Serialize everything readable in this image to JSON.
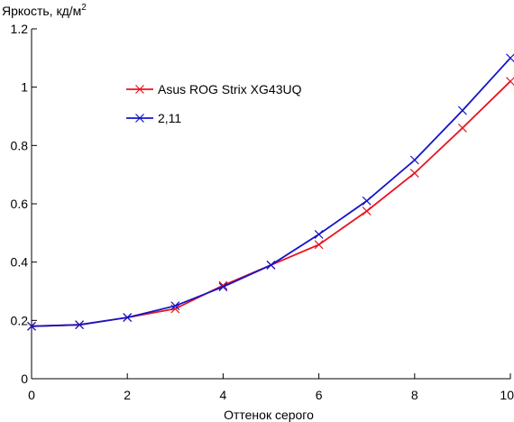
{
  "chart_data": {
    "type": "line",
    "title": "",
    "ylabel": "Яркость, кд/м",
    "ylabel_sup": "2",
    "xlabel": "Оттенок серого",
    "xlim": [
      0,
      10
    ],
    "ylim": [
      0,
      1.2
    ],
    "x_ticks": [
      "0",
      "2",
      "4",
      "6",
      "8",
      "10"
    ],
    "y_ticks": [
      "0",
      "0.2",
      "0.4",
      "0.6",
      "0.8",
      "1",
      "1.2"
    ],
    "x_tick_values": [
      0,
      2,
      4,
      6,
      8,
      10
    ],
    "y_tick_values": [
      0,
      0.2,
      0.4,
      0.6,
      0.8,
      1.0,
      1.2
    ],
    "grid": false,
    "legend_position": "upper-left",
    "series": [
      {
        "name": "Asus ROG Strix XG43UQ",
        "color": "#e8141e",
        "marker": "x",
        "x": [
          0,
          1,
          2,
          3,
          4,
          5,
          6,
          7,
          8,
          9,
          10
        ],
        "y": [
          0.18,
          0.185,
          0.21,
          0.24,
          0.32,
          0.39,
          0.46,
          0.575,
          0.705,
          0.86,
          1.02
        ]
      },
      {
        "name": "2,11",
        "color": "#1414c8",
        "marker": "x",
        "x": [
          0,
          1,
          2,
          3,
          4,
          5,
          6,
          7,
          8,
          9,
          10
        ],
        "y": [
          0.18,
          0.185,
          0.21,
          0.25,
          0.315,
          0.39,
          0.495,
          0.61,
          0.75,
          0.92,
          1.1
        ]
      }
    ]
  }
}
